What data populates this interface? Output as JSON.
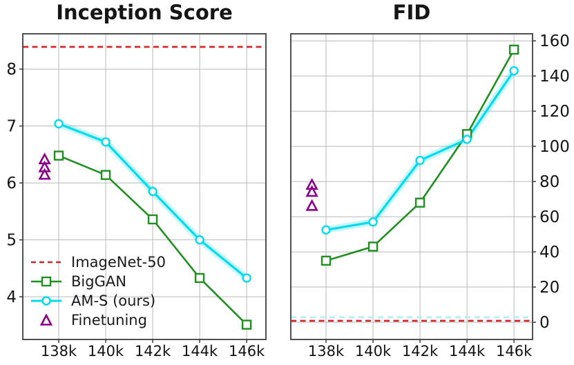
{
  "page": {
    "background": "#ffffff",
    "grid_color": "#b7b7b7",
    "spine_color": "#3c3c3c",
    "text_color": "#141414"
  },
  "chart_data": [
    {
      "type": "line",
      "title": "Inception Score",
      "x_tick_labels": [
        "138k",
        "140k",
        "142k",
        "144k",
        "146k"
      ],
      "x_tick_values": [
        138,
        140,
        142,
        144,
        146
      ],
      "xlim": [
        136.47,
        146.82
      ],
      "ylim": [
        3.25,
        8.62
      ],
      "y_tick_values": [
        4,
        5,
        6,
        7,
        8
      ],
      "y_axis_side": "left",
      "grid": true,
      "hline": {
        "label": "ImageNet-50",
        "value": 8.39,
        "color": "#d62222",
        "style": "dashed"
      },
      "series": [
        {
          "name": "BigGAN",
          "color": "#1f8f1f",
          "marker": "square",
          "x": [
            138,
            140,
            142,
            144,
            146
          ],
          "values": [
            6.48,
            6.14,
            5.36,
            4.33,
            3.51
          ]
        },
        {
          "name": "AM-S (ours)",
          "color": "#00dcee",
          "marker": "circle",
          "band": true,
          "x": [
            138,
            140,
            142,
            144,
            146
          ],
          "values": [
            7.04,
            6.72,
            5.85,
            5.0,
            4.33
          ]
        }
      ],
      "scatter": {
        "name": "Finetuning",
        "color": "#8b008b",
        "marker": "triangle",
        "x": [
          137.4,
          137.4,
          137.4
        ],
        "values": [
          6.41,
          6.27,
          6.14
        ]
      },
      "legend": {
        "position": "lower left",
        "items": [
          {
            "label": "ImageNet-50"
          },
          {
            "label": "BigGAN"
          },
          {
            "label": "AM-S (ours)"
          },
          {
            "label": "Finetuning"
          }
        ]
      }
    },
    {
      "type": "line",
      "title": "FID",
      "x_tick_labels": [
        "138k",
        "140k",
        "142k",
        "144k",
        "146k"
      ],
      "x_tick_values": [
        138,
        140,
        142,
        144,
        146
      ],
      "xlim": [
        136.5,
        146.79
      ],
      "ylim": [
        -9.8,
        164
      ],
      "y_tick_values": [
        0,
        20,
        40,
        60,
        80,
        100,
        120,
        140,
        160
      ],
      "y_axis_side": "right",
      "grid": true,
      "hline": {
        "label": "ImageNet-50",
        "value": 0.8,
        "color": "#d62222",
        "style": "dashed"
      },
      "faint_hline": {
        "value": 2.8,
        "color": "#b9edf5",
        "style": "dashed"
      },
      "series": [
        {
          "name": "BigGAN",
          "color": "#1f8f1f",
          "marker": "square",
          "x": [
            138,
            140,
            142,
            144,
            146
          ],
          "values": [
            35,
            43,
            68,
            107,
            155
          ]
        },
        {
          "name": "AM-S (ours)",
          "color": "#00dcee",
          "marker": "circle",
          "band": true,
          "x": [
            138,
            140,
            142,
            144,
            146
          ],
          "values": [
            52.5,
            57,
            92,
            104,
            143
          ]
        }
      ],
      "scatter": {
        "name": "Finetuning",
        "color": "#8b008b",
        "marker": "triangle",
        "x": [
          137.4,
          137.4,
          137.4
        ],
        "values": [
          78,
          74,
          66
        ]
      }
    }
  ]
}
